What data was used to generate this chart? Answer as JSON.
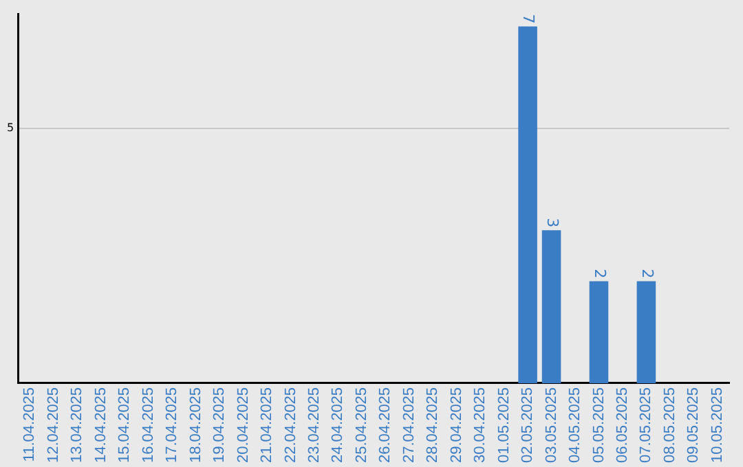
{
  "chart_data": {
    "type": "bar",
    "categories": [
      "11.04.2025",
      "12.04.2025",
      "13.04.2025",
      "14.04.2025",
      "15.04.2025",
      "16.04.2025",
      "17.04.2025",
      "18.04.2025",
      "19.04.2025",
      "20.04.2025",
      "21.04.2025",
      "22.04.2025",
      "23.04.2025",
      "24.04.2025",
      "25.04.2025",
      "26.04.2025",
      "27.04.2025",
      "28.04.2025",
      "29.04.2025",
      "30.04.2025",
      "01.05.2025",
      "02.05.2025",
      "03.05.2025",
      "04.05.2025",
      "05.05.2025",
      "06.05.2025",
      "07.05.2025",
      "08.05.2025",
      "09.05.2025",
      "10.05.2025"
    ],
    "values": [
      null,
      null,
      null,
      null,
      null,
      null,
      null,
      null,
      null,
      null,
      null,
      null,
      null,
      null,
      null,
      null,
      null,
      null,
      null,
      null,
      null,
      7,
      3,
      null,
      2,
      null,
      2,
      null,
      null,
      null
    ],
    "data_labels": true,
    "color": "#3b7dc4",
    "ylim": [
      0,
      7.25
    ],
    "yticks": [
      5
    ],
    "grid": "y",
    "legend": false
  }
}
